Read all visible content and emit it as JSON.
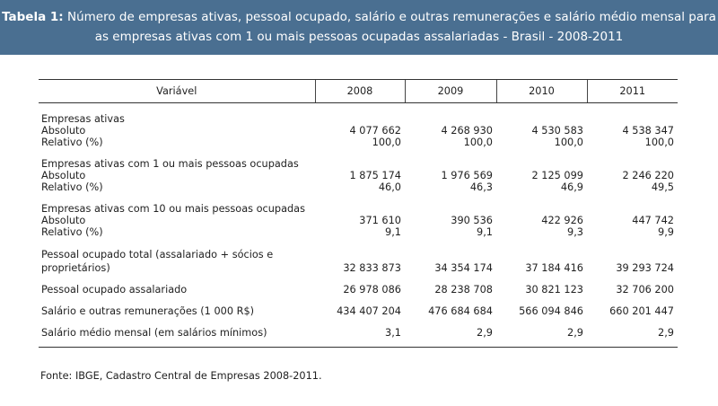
{
  "banner": {
    "label": "Tabela 1:",
    "text": " Número de empresas ativas, pessoal ocupado, salário e outras remunerações e salário médio mensal para as empresas ativas com 1 ou mais pessoas ocupadas assalariadas - Brasil - 2008-2011"
  },
  "table": {
    "headers": [
      "Variável",
      "2008",
      "2009",
      "2010",
      "2011"
    ],
    "groups": [
      {
        "title": "Empresas ativas",
        "rows": [
          {
            "label": "Absoluto",
            "values": [
              "4 077 662",
              "4 268 930",
              "4 530 583",
              "4 538 347"
            ]
          },
          {
            "label": "Relativo (%)",
            "values": [
              "100,0",
              "100,0",
              "100,0",
              "100,0"
            ]
          }
        ]
      },
      {
        "title": "Empresas ativas com 1 ou mais pessoas ocupadas",
        "rows": [
          {
            "label": "Absoluto",
            "values": [
              "1 875 174",
              "1 976 569",
              "2 125 099",
              "2 246 220"
            ]
          },
          {
            "label": "Relativo (%)",
            "values": [
              "46,0",
              "46,3",
              "46,9",
              "49,5"
            ]
          }
        ]
      },
      {
        "title": "Empresas ativas com 10 ou mais pessoas ocupadas",
        "rows": [
          {
            "label": "Absoluto",
            "values": [
              "371 610",
              "390 536",
              "422 926",
              "447 742"
            ]
          },
          {
            "label": "Relativo (%)",
            "values": [
              "9,1",
              "9,1",
              "9,3",
              "9,9"
            ]
          }
        ]
      }
    ],
    "pessoal_total": {
      "label_line1": "Pessoal ocupado total (assalariado + sócios e",
      "label_line2": "proprietários)",
      "values": [
        "32 833 873",
        "34 354 174",
        "37 184 416",
        "39 293 724"
      ]
    },
    "singles": [
      {
        "label": "Pessoal ocupado assalariado",
        "values": [
          "26 978 086",
          "28 238 708",
          "30 821 123",
          "32 706 200"
        ]
      },
      {
        "label": "Salário e outras remunerações (1 000 R$)",
        "values": [
          "434 407 204",
          "476 684 684",
          "566 094 846",
          "660 201 447"
        ]
      },
      {
        "label": "Salário médio mensal (em salários mínimos)",
        "values": [
          "3,1",
          "2,9",
          "2,9",
          "2,9"
        ]
      }
    ]
  },
  "source": "Fonte: IBGE, Cadastro Central de Empresas 2008-2011."
}
